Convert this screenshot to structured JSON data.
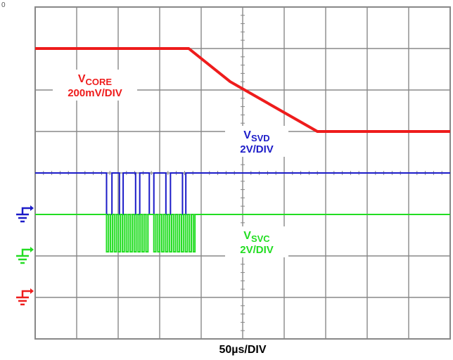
{
  "corner_mark": "0",
  "chart_data": {
    "type": "line",
    "title": "",
    "xlabel": "50µs/DIV",
    "ylabel": "",
    "divisions": {
      "x": 10,
      "y": 8
    },
    "grid": true,
    "x": [
      0,
      0.5,
      1,
      1.5,
      2,
      2.5,
      3,
      3.5,
      4,
      4.5,
      5,
      5.5,
      6,
      6.5,
      7,
      7.5,
      8,
      8.5,
      9,
      9.5,
      10
    ],
    "series": [
      {
        "name": "VCORE",
        "label_main": "V",
        "label_sub": "CORE",
        "scale": "200mV/DIV",
        "color": "#ee1c1c",
        "x": [
          0,
          2.0,
          3.7,
          4.7,
          6.8,
          10
        ],
        "y": [
          7.0,
          7.0,
          7.0,
          6.2,
          5.0,
          5.0
        ]
      },
      {
        "name": "VSVD",
        "label_main": "V",
        "label_sub": "SVD",
        "scale": "2V/DIV",
        "color": "#1c1cc8",
        "high": 4.0,
        "low": 3.0,
        "transitions": [
          1.72,
          1.85,
          2.03,
          2.12,
          2.42,
          2.52,
          2.75,
          2.86,
          3.15,
          3.26,
          3.55,
          3.63
        ],
        "end": 10
      },
      {
        "name": "VSVC",
        "label_main": "V",
        "label_sub": "SVC",
        "scale": "2V/DIV",
        "color": "#22dd22",
        "high": 3.0,
        "low": 2.1,
        "burst_start": 1.72,
        "burst_end": 3.85,
        "burst_gap": [
          2.72,
          2.85
        ],
        "burst_period": 0.095,
        "end": 10
      }
    ],
    "ground_markers": [
      {
        "color": "#1c1cc8",
        "level": 3.0
      },
      {
        "color": "#22dd22",
        "level": 2.0
      },
      {
        "color": "#ee1c1c",
        "level": 1.0
      }
    ]
  }
}
